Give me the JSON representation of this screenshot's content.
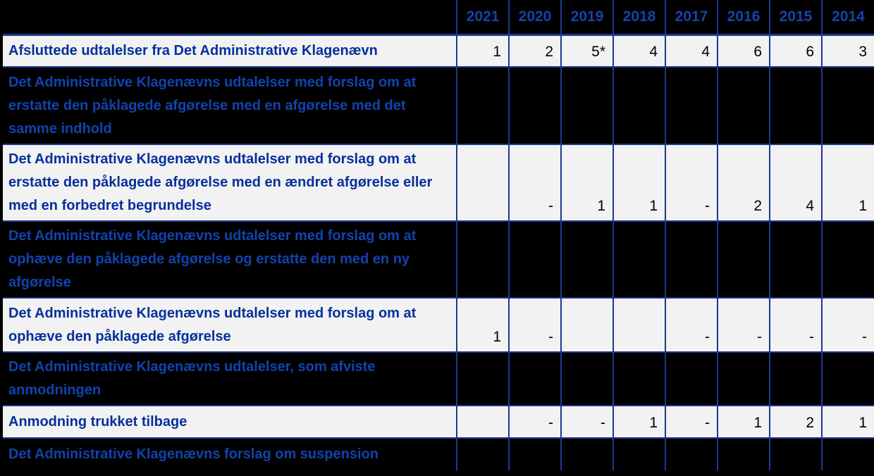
{
  "table": {
    "years": [
      "2021",
      "2020",
      "2019",
      "2018",
      "2017",
      "2016",
      "2015",
      "2014"
    ],
    "rows": [
      {
        "label": "Afsluttede udtalelser fra Det Administrative Klagenævn",
        "style": "light",
        "values": [
          "1",
          "2",
          "5*",
          "4",
          "4",
          "6",
          "6",
          "3"
        ]
      },
      {
        "label": "Det Administrative Klagenævns udtalelser med forslag om at erstatte den påklagede afgørelse med en afgørelse med det samme indhold",
        "style": "dark",
        "values": [
          "",
          "",
          "",
          "",
          "",
          "",
          "",
          ""
        ]
      },
      {
        "label": "Det Administrative Klagenævns udtalelser med forslag om at erstatte den påklagede afgørelse med en ændret afgørelse eller med en forbedret begrundelse",
        "style": "light",
        "values": [
          "",
          "-",
          "1",
          "1",
          "-",
          "2",
          "4",
          "1"
        ]
      },
      {
        "label": "Det Administrative Klagenævns udtalelser med forslag om at ophæve den påklagede afgørelse og erstatte den med en ny afgørelse",
        "style": "dark",
        "values": [
          "",
          "",
          "",
          "",
          "",
          "",
          "",
          ""
        ]
      },
      {
        "label": "Det Administrative Klagenævns udtalelser med forslag om at ophæve den påklagede afgørelse",
        "style": "light",
        "values": [
          "1",
          "-",
          "",
          "",
          "-",
          "-",
          "-",
          "-"
        ]
      },
      {
        "label": "Det Administrative Klagenævns udtalelser, som afviste anmodningen",
        "style": "dark",
        "values": [
          "",
          "",
          "",
          "",
          "",
          "",
          "",
          ""
        ]
      },
      {
        "label": "Anmodning trukket tilbage",
        "style": "light",
        "values": [
          "",
          "-",
          "-",
          "1",
          "-",
          "1",
          "2",
          "1"
        ]
      },
      {
        "label": "Det Administrative Klagenævns forslag om suspension",
        "style": "dark",
        "values": [
          "",
          "",
          "",
          "",
          "",
          "",
          "",
          ""
        ]
      }
    ],
    "colors": {
      "background": "#000000",
      "light_row_bg": "#F2F2F2",
      "border": "#1B3A8E",
      "year_header_text": "#1742A8",
      "light_row_label_text": "#04309C",
      "dark_row_label_text": "#1243AC",
      "value_text": "#000000"
    }
  }
}
